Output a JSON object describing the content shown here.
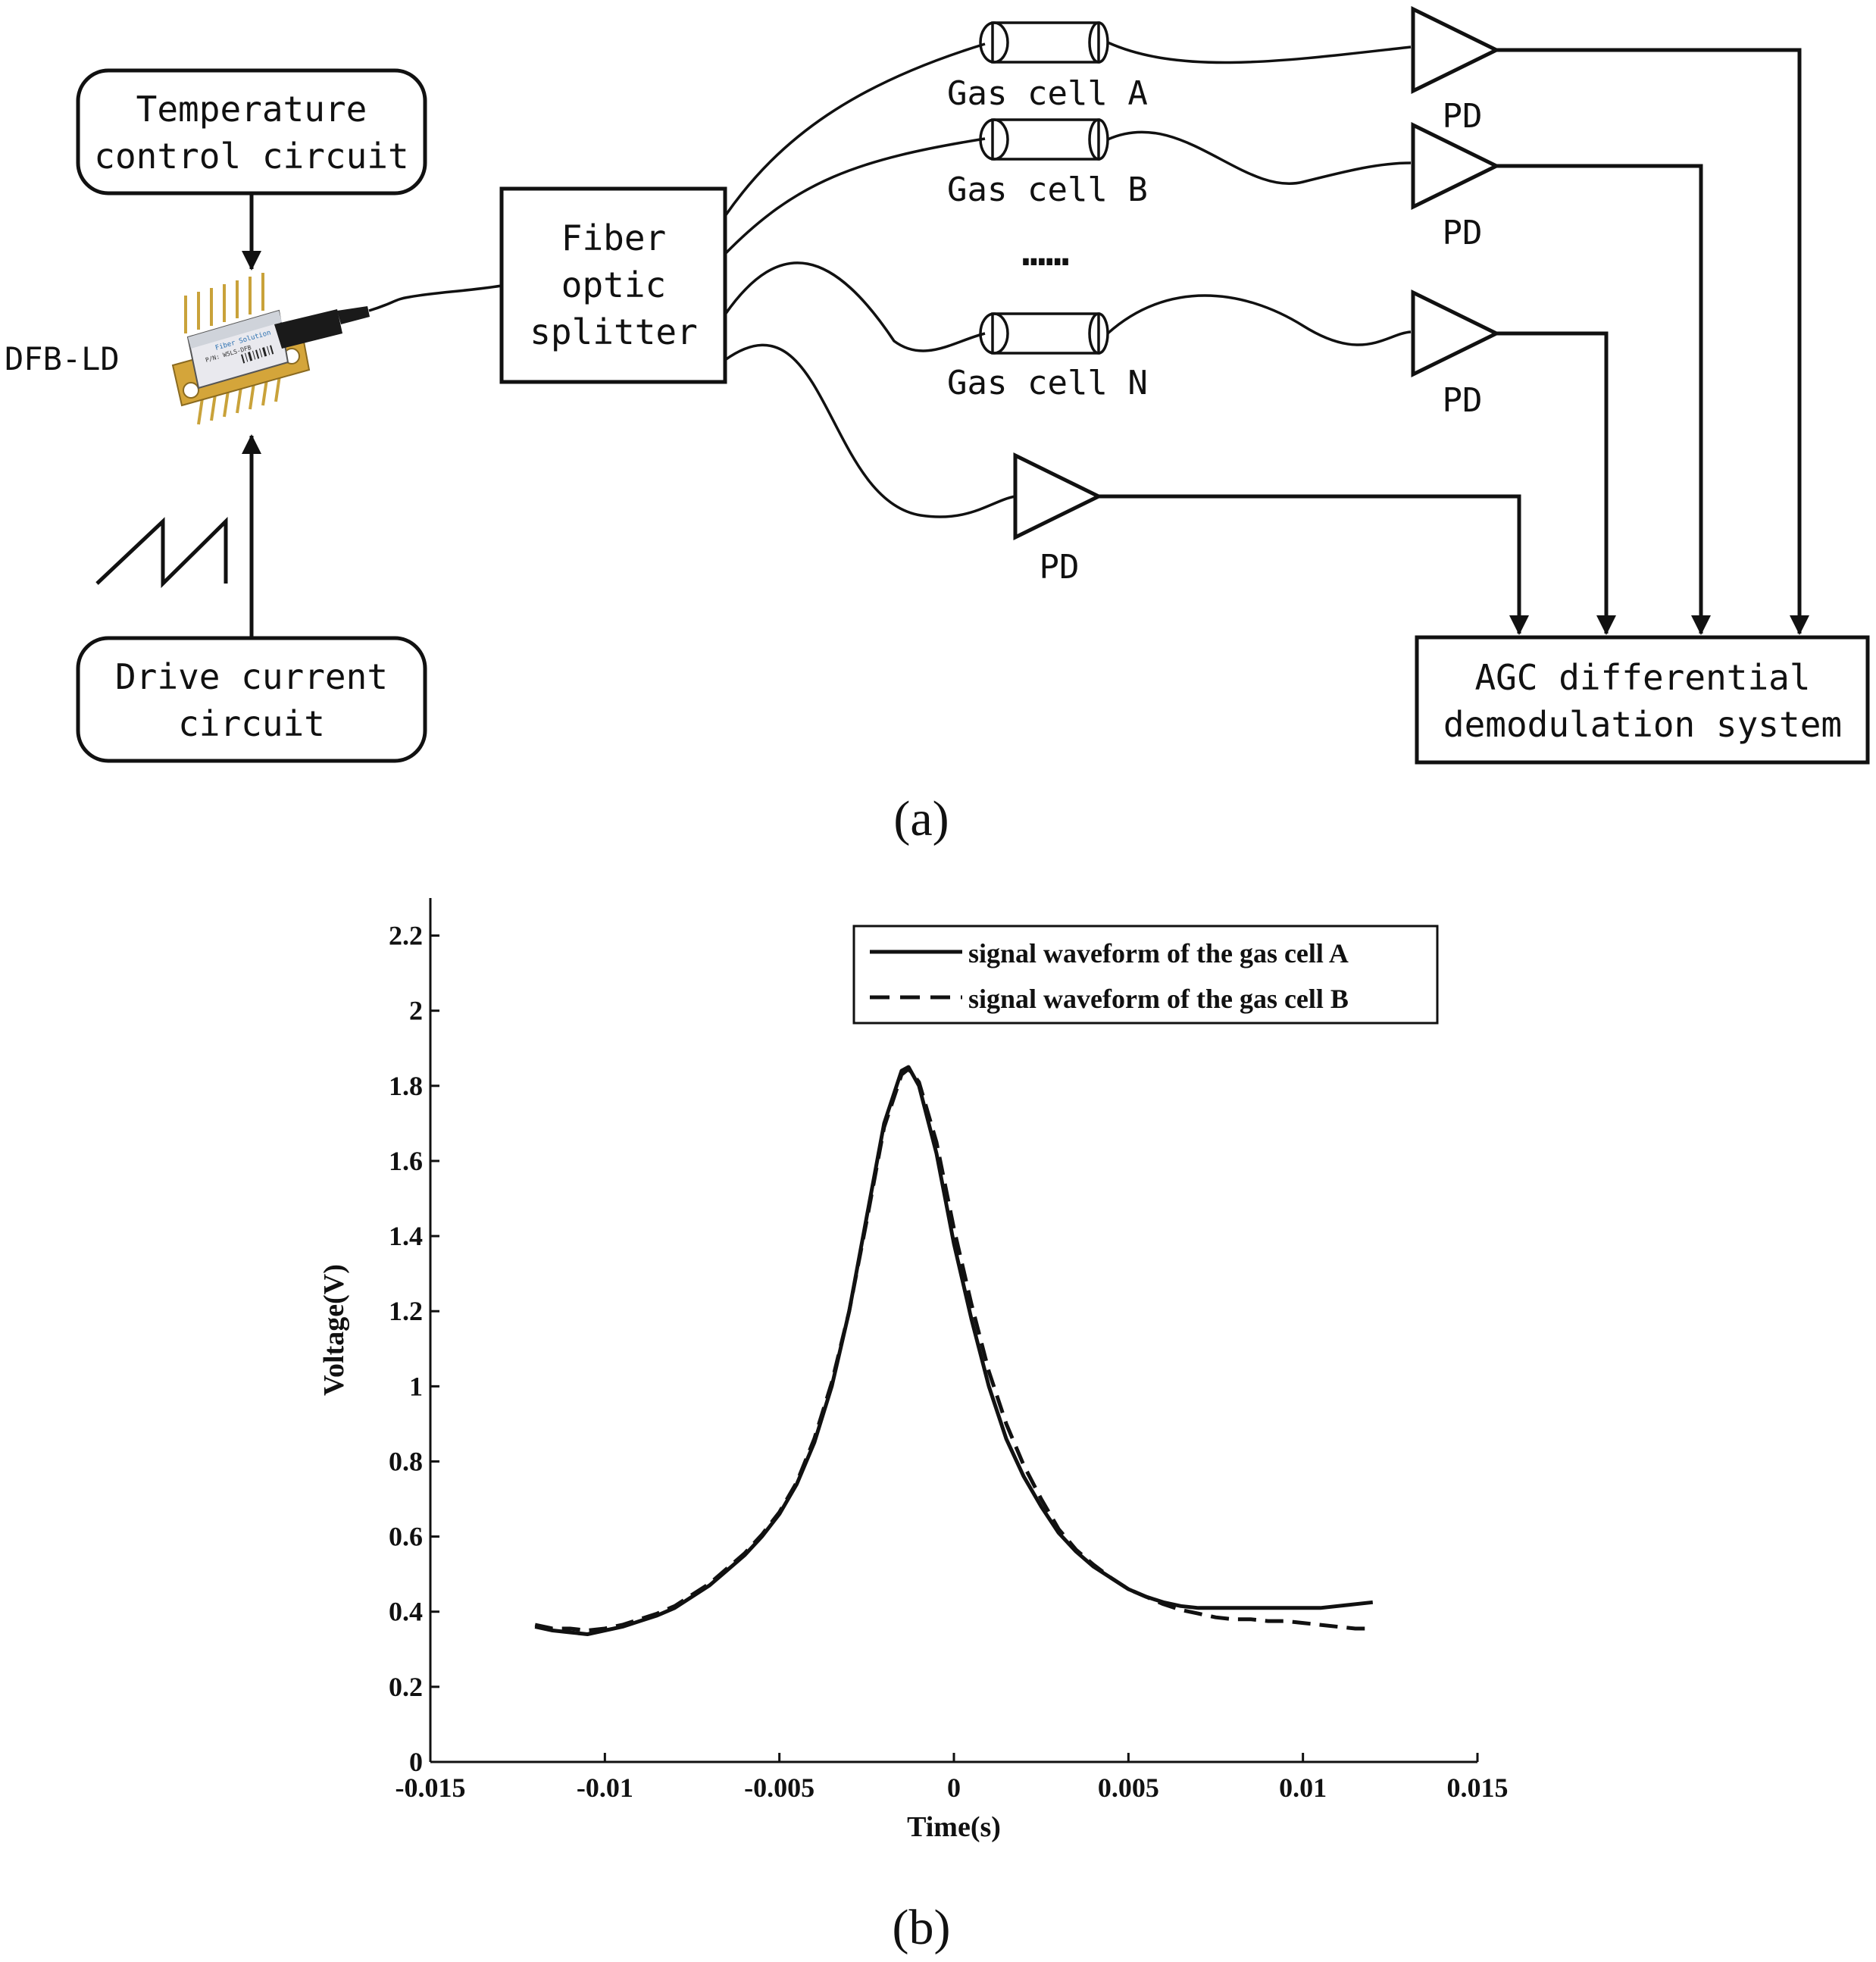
{
  "diagram": {
    "temperature_circuit": [
      "Temperature",
      "control circuit"
    ],
    "drive_circuit": [
      "Drive current",
      "circuit"
    ],
    "laser_label": "DFB-LD",
    "laser_chip_text": [
      "Fiber Solution",
      "P/N: W5LS-DFB"
    ],
    "splitter": [
      "Fiber",
      "optic",
      "splitter"
    ],
    "gas_cells": [
      "Gas cell A",
      "Gas cell B",
      "Gas cell N"
    ],
    "ellipsis": "……",
    "pd_label": "PD",
    "agc_system": [
      "AGC differential",
      "demodulation system"
    ],
    "caption": "(a)"
  },
  "chart_data": {
    "type": "line",
    "caption": "(b)",
    "title": "",
    "xlabel": "Time(s)",
    "ylabel": "Voltage(V)",
    "xlim": [
      -0.015,
      0.015
    ],
    "ylim": [
      0,
      2.3
    ],
    "xticks": [
      -0.015,
      -0.01,
      -0.005,
      0,
      0.005,
      0.01,
      0.015
    ],
    "xtick_labels": [
      "-0.015",
      "-0.01",
      "-0.005",
      "0",
      "0.005",
      "0.01",
      "0.015"
    ],
    "yticks": [
      0,
      0.2,
      0.4,
      0.6,
      0.8,
      1,
      1.2,
      1.4,
      1.6,
      1.8,
      2,
      2.2
    ],
    "ytick_labels": [
      "0",
      "0.2",
      "0.4",
      "0.6",
      "0.8",
      "1",
      "1.2",
      "1.4",
      "1.6",
      "1.8",
      "2",
      "2.2"
    ],
    "grid": false,
    "legend_position": "top-right",
    "series": [
      {
        "name": "signal waveform of the gas cell A",
        "style": "solid",
        "x": [
          -0.012,
          -0.0115,
          -0.011,
          -0.0105,
          -0.01,
          -0.0095,
          -0.009,
          -0.0085,
          -0.008,
          -0.0075,
          -0.007,
          -0.0065,
          -0.006,
          -0.0055,
          -0.005,
          -0.0045,
          -0.004,
          -0.0035,
          -0.003,
          -0.0025,
          -0.002,
          -0.0015,
          -0.0013,
          -0.001,
          -0.0005,
          0,
          0.0005,
          0.001,
          0.0015,
          0.002,
          0.0025,
          0.003,
          0.0035,
          0.004,
          0.0045,
          0.005,
          0.0055,
          0.006,
          0.0065,
          0.007,
          0.0075,
          0.008,
          0.0085,
          0.009,
          0.0095,
          0.01,
          0.0105,
          0.011,
          0.0115,
          0.012
        ],
        "y": [
          0.36,
          0.35,
          0.345,
          0.34,
          0.35,
          0.36,
          0.375,
          0.39,
          0.41,
          0.44,
          0.47,
          0.51,
          0.55,
          0.6,
          0.66,
          0.74,
          0.85,
          1.0,
          1.2,
          1.45,
          1.7,
          1.84,
          1.85,
          1.8,
          1.62,
          1.38,
          1.18,
          1.0,
          0.86,
          0.76,
          0.68,
          0.61,
          0.56,
          0.52,
          0.49,
          0.46,
          0.44,
          0.425,
          0.415,
          0.41,
          0.41,
          0.41,
          0.41,
          0.41,
          0.41,
          0.41,
          0.41,
          0.415,
          0.42,
          0.425
        ]
      },
      {
        "name": "signal waveform of the gas cell B",
        "style": "dashed",
        "x": [
          -0.012,
          -0.0115,
          -0.011,
          -0.0105,
          -0.01,
          -0.0095,
          -0.009,
          -0.0085,
          -0.008,
          -0.0075,
          -0.007,
          -0.0065,
          -0.006,
          -0.0055,
          -0.005,
          -0.0045,
          -0.004,
          -0.0035,
          -0.003,
          -0.0025,
          -0.002,
          -0.0015,
          -0.0013,
          -0.001,
          -0.0005,
          0,
          0.0005,
          0.001,
          0.0015,
          0.002,
          0.0025,
          0.003,
          0.0035,
          0.004,
          0.0045,
          0.005,
          0.0055,
          0.006,
          0.0065,
          0.007,
          0.0075,
          0.008,
          0.0085,
          0.009,
          0.0095,
          0.01,
          0.0105,
          0.011,
          0.0115,
          0.012
        ],
        "y": [
          0.365,
          0.355,
          0.355,
          0.35,
          0.355,
          0.365,
          0.38,
          0.395,
          0.415,
          0.445,
          0.475,
          0.515,
          0.555,
          0.605,
          0.665,
          0.745,
          0.86,
          1.01,
          1.2,
          1.44,
          1.69,
          1.83,
          1.845,
          1.81,
          1.65,
          1.42,
          1.22,
          1.04,
          0.9,
          0.79,
          0.7,
          0.62,
          0.565,
          0.525,
          0.49,
          0.46,
          0.44,
          0.42,
          0.405,
          0.395,
          0.385,
          0.38,
          0.38,
          0.375,
          0.375,
          0.37,
          0.365,
          0.36,
          0.355,
          0.355
        ]
      }
    ]
  }
}
